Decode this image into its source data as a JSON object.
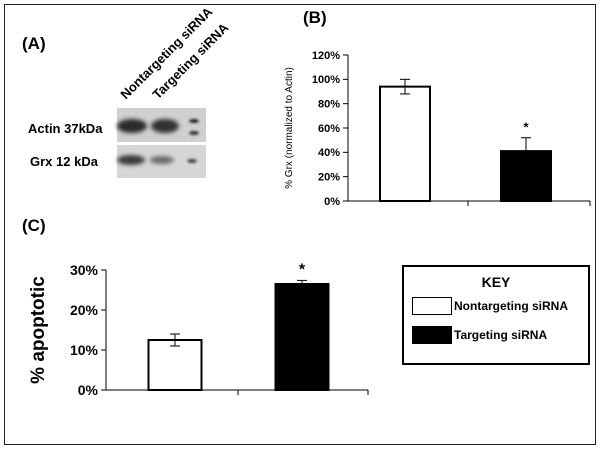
{
  "colors": {
    "nontargeting": "#ffffff",
    "targeting": "#000000",
    "stroke": "#000000"
  },
  "panels": {
    "a": "(A)",
    "b": "(B)",
    "c": "(C)"
  },
  "blot": {
    "lanes": [
      "Nontargeting siRNA",
      "Targeting siRNA"
    ],
    "rows": [
      "Actin 37kDa",
      "Grx 12 kDa"
    ]
  },
  "chart_data": [
    {
      "type": "bar",
      "panel": "(B)",
      "categories": [
        "Nontargeting siRNA",
        "Targeting siRNA"
      ],
      "values": [
        0.94,
        0.41
      ],
      "errors": [
        0.06,
        0.11
      ],
      "significance": [
        "",
        "*"
      ],
      "ylabel": "% Grx (normalized to Actin)",
      "ylim": [
        0,
        1.2
      ],
      "yticks": [
        "0%",
        "20%",
        "40%",
        "60%",
        "80%",
        "100%",
        "120%"
      ],
      "grid": false
    },
    {
      "type": "bar",
      "panel": "(C)",
      "categories": [
        "Nontargeting siRNA",
        "Targeting siRNA"
      ],
      "values": [
        0.125,
        0.265
      ],
      "errors": [
        0.015,
        0.009
      ],
      "significance": [
        "",
        "*"
      ],
      "ylabel": "% apoptotic",
      "ylim": [
        0,
        0.3
      ],
      "yticks": [
        "0%",
        "10%",
        "20%",
        "30%"
      ],
      "grid": false
    }
  ],
  "key": {
    "title": "KEY",
    "items": [
      "Nontargeting siRNA",
      "Targeting siRNA"
    ]
  }
}
